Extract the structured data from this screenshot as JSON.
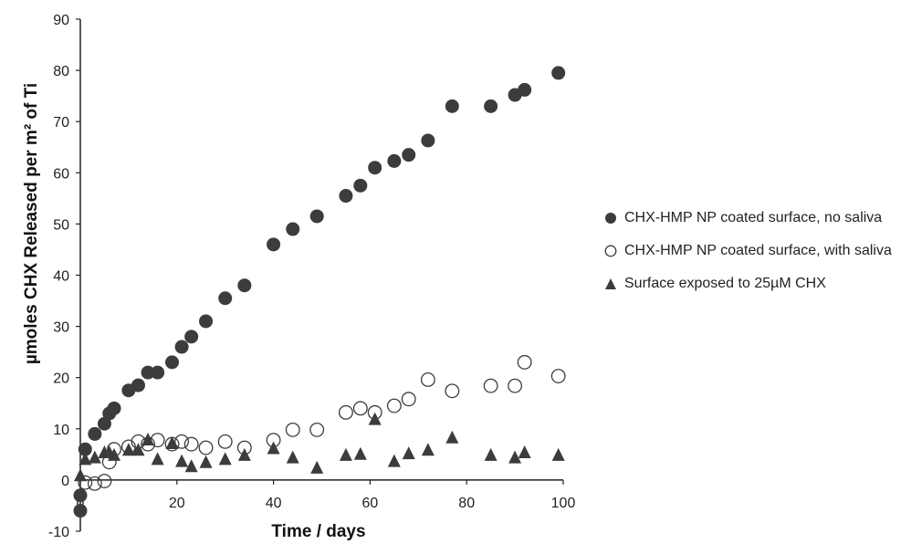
{
  "chart_data": {
    "type": "scatter",
    "title": "",
    "xlabel": "Time / days",
    "ylabel": "µmoles CHX Released per m² of Ti",
    "xlim": [
      0,
      100
    ],
    "ylim": [
      -10,
      90
    ],
    "x_ticks": [
      "0",
      "20",
      "40",
      "60",
      "80",
      "100"
    ],
    "y_ticks": [
      "-10",
      "0",
      "10",
      "20",
      "30",
      "40",
      "50",
      "60",
      "70",
      "80",
      "90"
    ],
    "grid": false,
    "legend_position": "right",
    "series": [
      {
        "name": "CHX-HMP NP coated surface, no saliva",
        "marker": "filled-circle",
        "color": "#3c3c3c",
        "points": [
          [
            0,
            -6
          ],
          [
            0,
            -3
          ],
          [
            1,
            6
          ],
          [
            3,
            9
          ],
          [
            5,
            11
          ],
          [
            6,
            13
          ],
          [
            7,
            14
          ],
          [
            10,
            17.5
          ],
          [
            12,
            18.5
          ],
          [
            14,
            21
          ],
          [
            16,
            21
          ],
          [
            19,
            23
          ],
          [
            21,
            26
          ],
          [
            23,
            28
          ],
          [
            26,
            31
          ],
          [
            30,
            35.5
          ],
          [
            34,
            38
          ],
          [
            40,
            46
          ],
          [
            44,
            49
          ],
          [
            49,
            51.5
          ],
          [
            55,
            55.5
          ],
          [
            58,
            57.5
          ],
          [
            61,
            61
          ],
          [
            65,
            62.3
          ],
          [
            68,
            63.5
          ],
          [
            72,
            66.3
          ],
          [
            77,
            73
          ],
          [
            85,
            73
          ],
          [
            90,
            75.2
          ],
          [
            92,
            76.2
          ],
          [
            99,
            79.5
          ]
        ]
      },
      {
        "name": "CHX-HMP NP coated surface, with saliva",
        "marker": "open-circle",
        "color": "#3c3c3c",
        "points": [
          [
            1,
            -0.5
          ],
          [
            3,
            -0.7
          ],
          [
            5,
            -0.2
          ],
          [
            6,
            3.5
          ],
          [
            7,
            6
          ],
          [
            10,
            6.5
          ],
          [
            12,
            7.5
          ],
          [
            14,
            7
          ],
          [
            16,
            7.8
          ],
          [
            19,
            7
          ],
          [
            21,
            7.5
          ],
          [
            23,
            7
          ],
          [
            26,
            6.3
          ],
          [
            30,
            7.5
          ],
          [
            34,
            6.3
          ],
          [
            40,
            7.8
          ],
          [
            44,
            9.8
          ],
          [
            49,
            9.8
          ],
          [
            55,
            13.2
          ],
          [
            58,
            14
          ],
          [
            61,
            13.2
          ],
          [
            65,
            14.5
          ],
          [
            68,
            15.8
          ],
          [
            72,
            19.6
          ],
          [
            77,
            17.4
          ],
          [
            85,
            18.4
          ],
          [
            90,
            18.4
          ],
          [
            92,
            23
          ],
          [
            99,
            20.3
          ]
        ]
      },
      {
        "name": "Surface exposed to 25µM CHX",
        "marker": "filled-triangle",
        "color": "#3c3c3c",
        "points": [
          [
            0,
            1
          ],
          [
            1,
            4.2
          ],
          [
            3,
            4.5
          ],
          [
            5,
            5.5
          ],
          [
            6,
            5.5
          ],
          [
            7,
            5
          ],
          [
            10,
            6
          ],
          [
            12,
            6
          ],
          [
            14,
            8
          ],
          [
            16,
            4.2
          ],
          [
            19,
            7.3
          ],
          [
            21,
            3.8
          ],
          [
            23,
            2.8
          ],
          [
            26,
            3.6
          ],
          [
            30,
            4.2
          ],
          [
            34,
            5
          ],
          [
            40,
            6.3
          ],
          [
            44,
            4.5
          ],
          [
            49,
            2.5
          ],
          [
            55,
            5
          ],
          [
            58,
            5.2
          ],
          [
            61,
            12
          ],
          [
            65,
            3.8
          ],
          [
            68,
            5.3
          ],
          [
            72,
            6
          ],
          [
            77,
            8.4
          ],
          [
            85,
            5
          ],
          [
            90,
            4.5
          ],
          [
            92,
            5.5
          ],
          [
            99,
            5
          ]
        ]
      }
    ]
  }
}
